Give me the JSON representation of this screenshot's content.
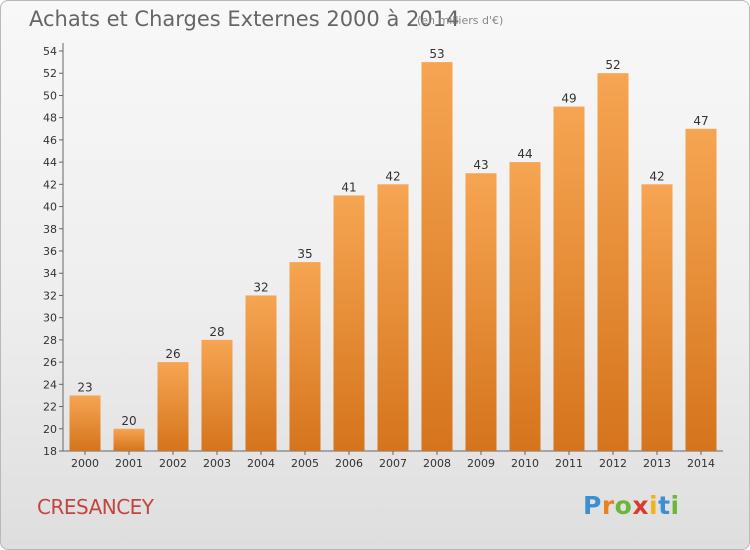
{
  "chart_data": {
    "type": "bar",
    "title": "Achats et Charges Externes 2000 à 2014",
    "subtitle": "(en milliers d'€)",
    "categories": [
      "2000",
      "2001",
      "2002",
      "2003",
      "2004",
      "2005",
      "2006",
      "2007",
      "2008",
      "2009",
      "2010",
      "2011",
      "2012",
      "2013",
      "2014"
    ],
    "values": [
      23,
      20,
      26,
      28,
      32,
      35,
      41,
      42,
      53,
      43,
      44,
      49,
      52,
      42,
      47
    ],
    "ylim": [
      18,
      54
    ],
    "yticks": [
      18,
      20,
      22,
      24,
      26,
      28,
      30,
      32,
      34,
      36,
      38,
      40,
      42,
      44,
      46,
      48,
      50,
      52,
      54
    ],
    "xlabel": "",
    "ylabel": "",
    "grid": false,
    "bar_color_top": "#f6a552",
    "bar_color_bottom": "#d5741c"
  },
  "footer": {
    "place": "CRESANCEY",
    "logo": {
      "letters": [
        "P",
        "r",
        "o",
        "x",
        "i",
        "t",
        "i"
      ],
      "colors": [
        "#3c8fd0",
        "#e8821e",
        "#6cb63c",
        "#d93b2f",
        "#f2b21b",
        "#3c8fd0",
        "#6cb63c"
      ]
    }
  }
}
